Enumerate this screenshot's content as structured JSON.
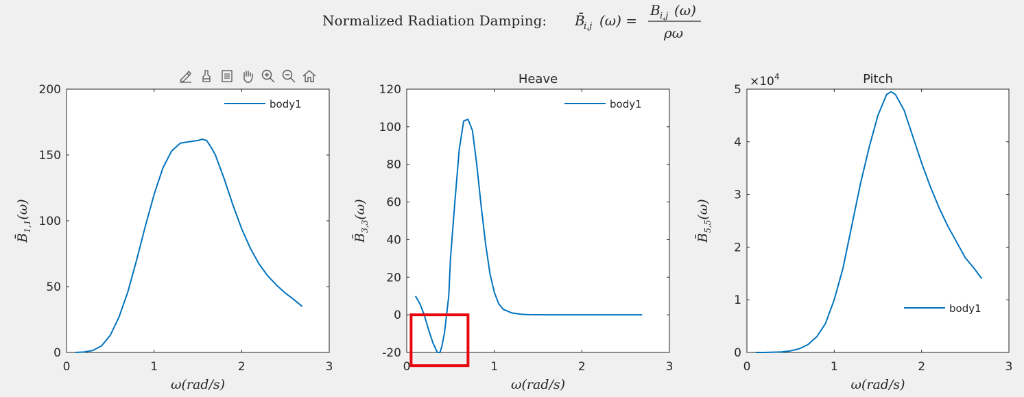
{
  "figure": {
    "title_text": "Normalized Radiation Damping:",
    "title_lhs": "B̄",
    "title_lhs_sub": "i,j",
    "title_lhs_arg": "(ω) =",
    "title_num": "B",
    "title_num_sub": "i,j",
    "title_num_arg": "(ω)",
    "title_den": "ρω"
  },
  "toolbar": {
    "icons": [
      "brush-edit-icon",
      "data-tip-icon",
      "legend-toggle-icon",
      "pan-hand-icon",
      "zoom-in-icon",
      "zoom-out-icon",
      "home-restore-icon"
    ]
  },
  "colors": {
    "line": "#0072bd",
    "highlight_box": "#e8070c",
    "axes": "#262626",
    "background": "#f0f0f0",
    "plot_bg": "#ffffff"
  },
  "chart_data": [
    {
      "type": "line",
      "title": "",
      "xlabel": "ω(rad/s)",
      "ylabel_main": "B̄",
      "ylabel_sub": "1,1",
      "ylabel_arg": "(ω)",
      "xlim": [
        0,
        3
      ],
      "ylim": [
        0,
        200
      ],
      "xticks": [
        0,
        1,
        2,
        3
      ],
      "yticks": [
        0,
        50,
        100,
        150,
        200
      ],
      "exponent_label": "",
      "legend": "top-right",
      "series": [
        {
          "name": "body1",
          "x": [
            0.1,
            0.2,
            0.3,
            0.4,
            0.5,
            0.6,
            0.7,
            0.8,
            0.9,
            1.0,
            1.1,
            1.2,
            1.3,
            1.4,
            1.45,
            1.5,
            1.55,
            1.6,
            1.65,
            1.7,
            1.8,
            1.9,
            2.0,
            2.1,
            2.2,
            2.3,
            2.4,
            2.5,
            2.6,
            2.69
          ],
          "y": [
            0,
            0.3,
            1.5,
            5,
            13,
            27,
            46,
            70,
            96,
            120,
            140,
            153,
            159,
            160,
            160.5,
            161,
            162,
            161,
            156,
            150,
            132,
            112,
            94,
            79,
            67,
            58,
            51,
            45,
            40,
            35
          ]
        }
      ]
    },
    {
      "type": "line",
      "title": "Heave",
      "xlabel": "ω(rad/s)",
      "ylabel_main": "B̄",
      "ylabel_sub": "3,3",
      "ylabel_arg": "(ω)",
      "xlim": [
        0,
        3
      ],
      "ylim": [
        -20,
        120
      ],
      "xticks": [
        0,
        1,
        2,
        3
      ],
      "yticks": [
        -20,
        0,
        20,
        40,
        60,
        80,
        100,
        120
      ],
      "exponent_label": "",
      "legend": "top-right",
      "series": [
        {
          "name": "body1",
          "x": [
            0.1,
            0.15,
            0.2,
            0.25,
            0.3,
            0.35,
            0.38,
            0.4,
            0.43,
            0.45,
            0.48,
            0.5,
            0.55,
            0.6,
            0.65,
            0.7,
            0.75,
            0.8,
            0.85,
            0.9,
            0.95,
            1.0,
            1.05,
            1.1,
            1.2,
            1.3,
            1.4,
            1.6,
            2.0,
            2.5,
            2.69
          ],
          "y": [
            10,
            6,
            0,
            -8,
            -15,
            -20,
            -20,
            -17,
            -10,
            -2,
            10,
            30,
            60,
            88,
            103,
            104,
            98,
            80,
            58,
            38,
            22,
            12,
            6,
            3,
            1,
            0.3,
            0.1,
            0,
            0,
            0,
            0
          ]
        }
      ],
      "annotation": {
        "type": "highlight-box",
        "x_range": [
          0.05,
          0.7
        ],
        "y_range": [
          -27,
          0
        ]
      }
    },
    {
      "type": "line",
      "title": "Pitch",
      "xlabel": "ω(rad/s)",
      "ylabel_main": "B̄",
      "ylabel_sub": "5,5",
      "ylabel_arg": "(ω)",
      "xlim": [
        0,
        3
      ],
      "ylim": [
        0,
        5
      ],
      "xticks": [
        0,
        1,
        2,
        3
      ],
      "yticks": [
        0,
        1,
        2,
        3,
        4,
        5
      ],
      "exponent_label": "×10",
      "exponent_power": "4",
      "legend": "bottom-right",
      "series": [
        {
          "name": "body1",
          "x": [
            0.1,
            0.2,
            0.3,
            0.4,
            0.5,
            0.6,
            0.7,
            0.8,
            0.9,
            1.0,
            1.1,
            1.2,
            1.3,
            1.4,
            1.5,
            1.6,
            1.65,
            1.7,
            1.8,
            1.9,
            2.0,
            2.1,
            2.2,
            2.3,
            2.4,
            2.5,
            2.6,
            2.69
          ],
          "y": [
            0,
            0,
            0.005,
            0.01,
            0.03,
            0.07,
            0.15,
            0.3,
            0.55,
            1.0,
            1.6,
            2.4,
            3.2,
            3.9,
            4.5,
            4.9,
            4.95,
            4.9,
            4.6,
            4.1,
            3.6,
            3.15,
            2.75,
            2.4,
            2.1,
            1.8,
            1.6,
            1.4
          ]
        }
      ]
    }
  ]
}
